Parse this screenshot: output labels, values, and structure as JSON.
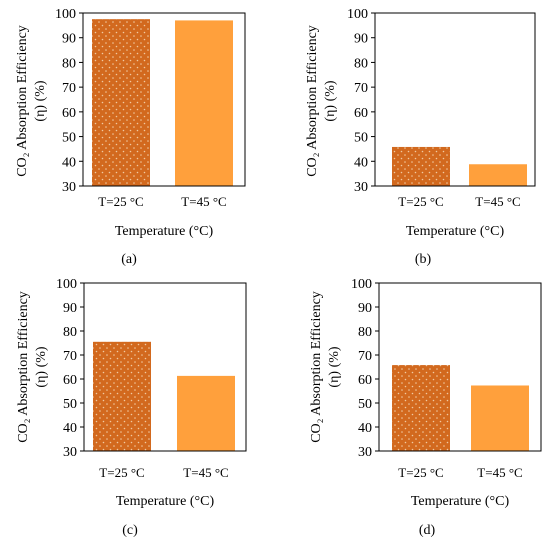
{
  "chart_data": [
    {
      "type": "bar",
      "panel_label": "(a)",
      "categories": [
        "T=25 °C",
        "T=45 °C"
      ],
      "values": [
        97.5,
        97
      ],
      "xlabel": "Temperature (°C)",
      "ylabel_line1": "CO₂ Absorption Efficiency",
      "ylabel_line2": "(η) (%)",
      "ylim": [
        30,
        100
      ],
      "yticks": [
        "30",
        "40",
        "50",
        "60",
        "70",
        "80",
        "90",
        "100"
      ],
      "grid": false,
      "colors": [
        "#d2691e",
        "#ffa03c"
      ]
    },
    {
      "type": "bar",
      "panel_label": "(b)",
      "categories": [
        "T=25 °C",
        "T=45 °C"
      ],
      "values": [
        45.8,
        38.8
      ],
      "xlabel": "Temperature (°C)",
      "ylabel_line1": "CO₂ Absorption Efficiency",
      "ylabel_line2": "(η) (%)",
      "ylim": [
        30,
        100
      ],
      "yticks": [
        "30",
        "40",
        "50",
        "60",
        "70",
        "80",
        "90",
        "100"
      ],
      "grid": false,
      "colors": [
        "#d2691e",
        "#ffa03c"
      ]
    },
    {
      "type": "bar",
      "panel_label": "(c)",
      "categories": [
        "T=25 °C",
        "T=45 °C"
      ],
      "values": [
        75.5,
        61.3
      ],
      "xlabel": "Temperature (°C)",
      "ylabel_line1": "CO₂ Absorption Efficiency",
      "ylabel_line2": "(η) (%)",
      "ylim": [
        30,
        100
      ],
      "yticks": [
        "30",
        "40",
        "50",
        "60",
        "70",
        "80",
        "90",
        "100"
      ],
      "grid": false,
      "colors": [
        "#d2691e",
        "#ffa03c"
      ]
    },
    {
      "type": "bar",
      "panel_label": "(d)",
      "categories": [
        "T=25 °C",
        "T=45 °C"
      ],
      "values": [
        65.8,
        57.3
      ],
      "xlabel": "Temperature (°C)",
      "ylabel_line1": "CO₂ Absorption Efficiency",
      "ylabel_line2": "(η) (%)",
      "ylim": [
        30,
        100
      ],
      "yticks": [
        "30",
        "40",
        "50",
        "60",
        "70",
        "80",
        "90",
        "100"
      ],
      "grid": false,
      "colors": [
        "#d2691e",
        "#ffa03c"
      ]
    }
  ]
}
